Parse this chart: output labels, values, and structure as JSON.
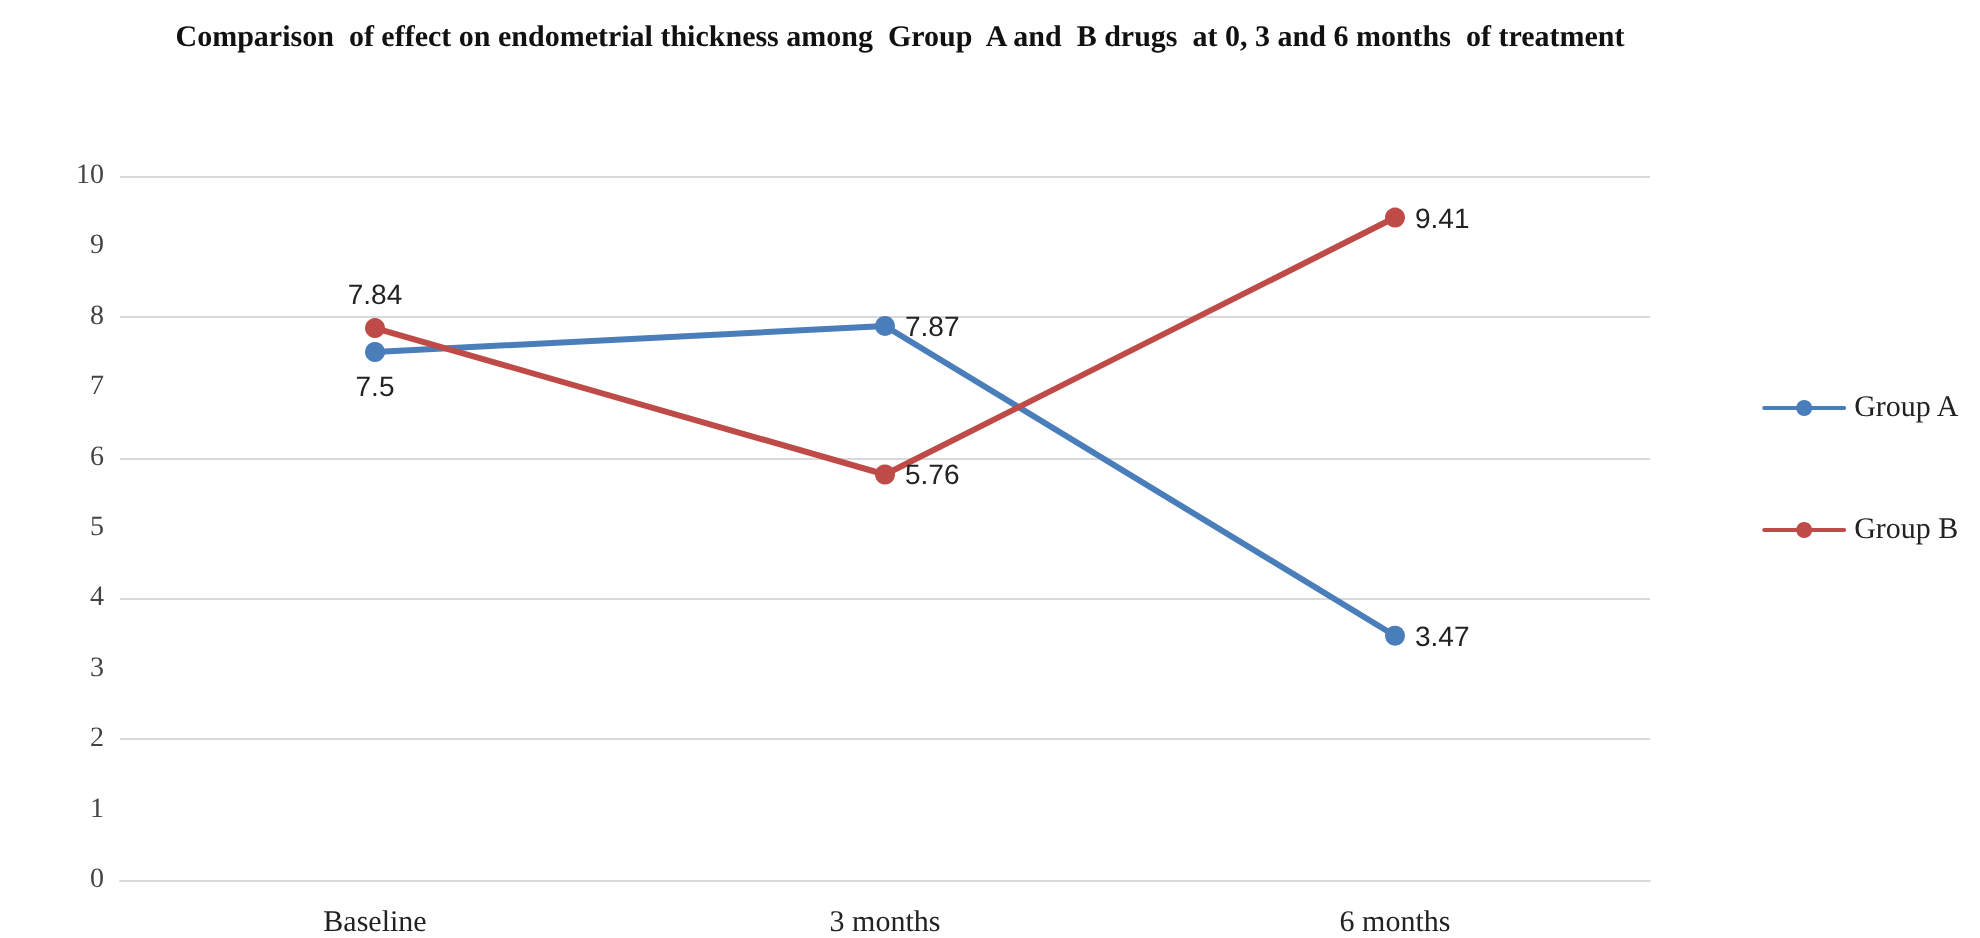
{
  "chart_data": {
    "type": "line",
    "title": "Comparison  of effect on endometrial thickness among  Group  A and  B drugs  at 0, 3 and 6 months  of treatment",
    "categories": [
      "Baseline",
      "3 months",
      "6 months"
    ],
    "series": [
      {
        "name": "Group A",
        "color": "#4a7ebb",
        "values": [
          7.5,
          7.87,
          3.47
        ]
      },
      {
        "name": "Group B",
        "color": "#be4b48",
        "values": [
          7.84,
          5.76,
          9.41
        ]
      }
    ],
    "ylim": [
      0,
      10
    ],
    "yticks": [
      0,
      1,
      2,
      3,
      4,
      5,
      6,
      7,
      8,
      9,
      10
    ],
    "grid": "y",
    "legend": "right",
    "marker": "circle",
    "line_style": "solid",
    "data_labels": true
  }
}
